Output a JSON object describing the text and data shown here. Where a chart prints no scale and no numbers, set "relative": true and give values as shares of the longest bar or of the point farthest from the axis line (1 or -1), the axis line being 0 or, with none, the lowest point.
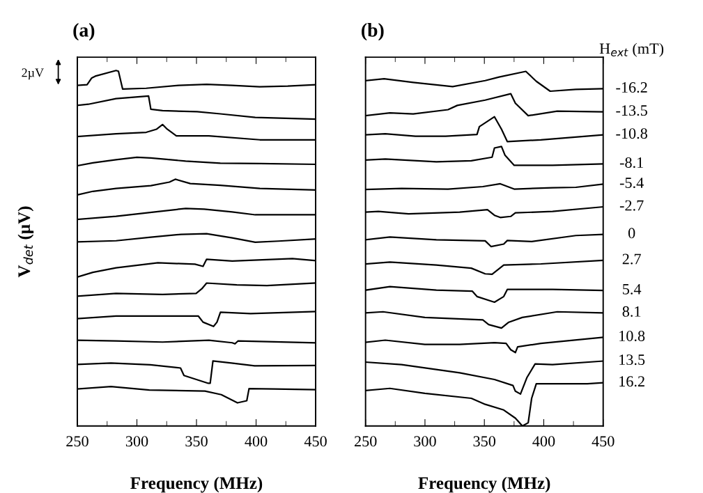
{
  "chart_data": [
    {
      "type": "line",
      "title": "(a)",
      "xlabel": "Frequency (MHz)",
      "ylabel": "V$_{det}$ (µV)",
      "relative": true,
      "xlim": [
        250,
        450
      ],
      "xticks": [
        250,
        {
          "value": 275,
          "label": null
        },
        300,
        {
          "value": 325,
          "label": null
        },
        350,
        {
          "value": 375,
          "label": null
        },
        400,
        {
          "value": 425,
          "label": null
        },
        450
      ],
      "grid": false,
      "marker": "none",
      "line_style": "solid",
      "annotations": [
        "2µV"
      ],
      "series": [
        {
          "color": "#000000",
          "x": [
            250,
            258.2,
            262.1,
            265,
            282.5,
            284.5,
            288,
            307.8,
            335,
            358.5,
            380,
            403,
            426.6,
            450
          ],
          "values": [
            0.958,
            0.96,
            0.979,
            0.984,
            1.0,
            0.998,
            0.948,
            0.95,
            0.958,
            0.961,
            0.958,
            0.954,
            0.956,
            0.96
          ]
        },
        {
          "color": "#000000",
          "x": [
            250,
            259.2,
            282.5,
            309.8,
            311.7,
            321.5,
            350.6,
            370,
            399.3,
            450
          ],
          "values": [
            0.902,
            0.905,
            0.921,
            0.928,
            0.891,
            0.887,
            0.884,
            0.878,
            0.868,
            0.863
          ]
        },
        {
          "color": "#000000",
          "x": [
            250,
            282.5,
            307.8,
            316.6,
            321.5,
            325.4,
            333.1,
            360.4,
            403.2,
            450
          ],
          "values": [
            0.814,
            0.822,
            0.826,
            0.835,
            0.848,
            0.835,
            0.816,
            0.816,
            0.805,
            0.805
          ]
        },
        {
          "color": "#000000",
          "x": [
            250,
            263,
            282.5,
            300,
            311.7,
            340.9,
            370,
            403.2,
            450
          ],
          "values": [
            0.732,
            0.74,
            0.749,
            0.756,
            0.754,
            0.745,
            0.739,
            0.738,
            0.736
          ]
        },
        {
          "color": "#000000",
          "x": [
            250,
            263,
            282.5,
            311.7,
            327.3,
            332.2,
            344.8,
            370,
            403.2,
            450
          ],
          "values": [
            0.65,
            0.66,
            0.668,
            0.676,
            0.686,
            0.694,
            0.682,
            0.677,
            0.668,
            0.664
          ]
        },
        {
          "color": "#000000",
          "x": [
            250,
            282.5,
            317.6,
            341,
            356.5,
            380,
            399.3,
            450
          ],
          "values": [
            0.581,
            0.59,
            0.603,
            0.612,
            0.61,
            0.602,
            0.594,
            0.594
          ]
        },
        {
          "color": "#000000",
          "x": [
            250,
            282.5,
            311.7,
            337,
            358.5,
            380,
            399.3,
            418.8,
            450
          ],
          "values": [
            0.518,
            0.521,
            0.531,
            0.539,
            0.541,
            0.529,
            0.517,
            0.52,
            0.526
          ]
        },
        {
          "color": "#000000",
          "x": [
            250,
            263,
            282.5,
            317.6,
            348.7,
            355.5,
            358.5,
            380,
            430.5,
            450
          ],
          "values": [
            0.419,
            0.432,
            0.445,
            0.459,
            0.455,
            0.449,
            0.469,
            0.464,
            0.471,
            0.465
          ]
        },
        {
          "color": "#000000",
          "x": [
            250,
            282.5,
            321.5,
            349.7,
            354.5,
            358.5,
            383.8,
            409.1,
            450
          ],
          "values": [
            0.365,
            0.373,
            0.37,
            0.373,
            0.386,
            0.402,
            0.397,
            0.395,
            0.402
          ]
        },
        {
          "color": "#000000",
          "x": [
            250,
            282.5,
            351.6,
            355.5,
            364.3,
            367.2,
            370.1,
            395.4,
            450
          ],
          "values": [
            0.302,
            0.309,
            0.309,
            0.292,
            0.28,
            0.292,
            0.32,
            0.316,
            0.322
          ]
        },
        {
          "color": "#000000",
          "x": [
            250,
            282.5,
            321.5,
            360.4,
            380,
            382.3,
            384.8,
            409.1,
            450
          ],
          "values": [
            0.241,
            0.239,
            0.236,
            0.241,
            0.234,
            0.231,
            0.239,
            0.237,
            0.234
          ]
        },
        {
          "color": "#000000",
          "x": [
            250,
            278.2,
            311.3,
            336.6,
            339.5,
            359.9,
            361.5,
            363.8,
            379.4,
            398.8,
            450
          ],
          "values": [
            0.173,
            0.177,
            0.172,
            0.163,
            0.142,
            0.12,
            0.12,
            0.183,
            0.177,
            0.169,
            0.17
          ]
        },
        {
          "color": "#000000",
          "x": [
            250,
            278.2,
            310.4,
            357.1,
            370.8,
            384.4,
            392.2,
            394.1,
            415.5,
            450
          ],
          "values": [
            0.104,
            0.111,
            0.101,
            0.098,
            0.088,
            0.065,
            0.071,
            0.105,
            0.104,
            0.102
          ]
        }
      ]
    },
    {
      "type": "line",
      "title": "(b)",
      "xlabel": "Frequency (MHz)",
      "legend_title": "H$_{ext}$ (mT)",
      "relative": true,
      "xlim": [
        250,
        450
      ],
      "xticks": [
        250,
        {
          "value": 275,
          "label": null
        },
        300,
        {
          "value": 325,
          "label": null
        },
        350,
        {
          "value": 375,
          "label": null
        },
        400,
        {
          "value": 425,
          "label": null
        },
        450
      ],
      "grid": false,
      "legend": "right",
      "marker": "none",
      "line_style": "solid",
      "series": [
        {
          "name": "-16.2",
          "color": "#000000",
          "x": [
            250,
            265.6,
            290.1,
            323.3,
            350.7,
            362.4,
            384.9,
            393.7,
            405.4,
            426.9,
            450
          ],
          "values": [
            0.974,
            0.979,
            0.969,
            0.957,
            0.974,
            0.984,
            1.0,
            0.972,
            0.944,
            0.949,
            0.951
          ]
        },
        {
          "name": "-13.5",
          "color": "#000000",
          "x": [
            250,
            270.5,
            290.1,
            319.4,
            327.2,
            350.7,
            372.2,
            376.1,
            386.9,
            411.3,
            450
          ],
          "values": [
            0.875,
            0.883,
            0.88,
            0.892,
            0.904,
            0.919,
            0.937,
            0.91,
            0.875,
            0.888,
            0.886
          ]
        },
        {
          "name": "-10.8",
          "color": "#000000",
          "x": [
            250,
            266.6,
            292,
            317.4,
            343.8,
            345.8,
            358.5,
            364.4,
            369.3,
            397.6,
            450
          ],
          "values": [
            0.821,
            0.824,
            0.817,
            0.817,
            0.822,
            0.844,
            0.872,
            0.837,
            0.802,
            0.807,
            0.821
          ]
        },
        {
          "name": "-8.1",
          "color": "#000000",
          "x": [
            250,
            266.6,
            309.6,
            339,
            356.5,
            358.5,
            364.4,
            367.3,
            375.1,
            407.4,
            450
          ],
          "values": [
            0.75,
            0.753,
            0.745,
            0.748,
            0.758,
            0.784,
            0.788,
            0.764,
            0.735,
            0.735,
            0.739
          ]
        },
        {
          "name": "-5.4",
          "color": "#000000",
          "x": [
            250,
            280.3,
            319.4,
            348.7,
            363.4,
            375.1,
            407.4,
            427,
            450
          ],
          "values": [
            0.667,
            0.67,
            0.668,
            0.675,
            0.683,
            0.668,
            0.672,
            0.673,
            0.682
          ]
        },
        {
          "name": "-2.7",
          "color": "#000000",
          "x": [
            250,
            260.8,
            286.2,
            329.2,
            352.6,
            358.5,
            363.4,
            372.2,
            376.1,
            407.4,
            450
          ],
          "values": [
            0.603,
            0.605,
            0.598,
            0.603,
            0.61,
            0.594,
            0.588,
            0.591,
            0.601,
            0.605,
            0.618
          ]
        },
        {
          "name": "0",
          "color": "#000000",
          "x": [
            250,
            270.5,
            309.6,
            350.7,
            355.6,
            366.3,
            369.3,
            389.8,
            427,
            450
          ],
          "values": [
            0.525,
            0.533,
            0.525,
            0.522,
            0.506,
            0.513,
            0.523,
            0.52,
            0.537,
            0.54
          ]
        },
        {
          "name": "2.7",
          "color": "#000000",
          "x": [
            250,
            270.5,
            309.6,
            339,
            350.7,
            356.5,
            366.3,
            397.6,
            450
          ],
          "values": [
            0.457,
            0.462,
            0.454,
            0.445,
            0.429,
            0.428,
            0.454,
            0.457,
            0.467
          ]
        },
        {
          "name": "5.4",
          "color": "#000000",
          "x": [
            250,
            270.5,
            309.6,
            339.9,
            343.8,
            358.5,
            366.3,
            369.3,
            407.4,
            450
          ],
          "values": [
            0.383,
            0.393,
            0.383,
            0.38,
            0.365,
            0.349,
            0.365,
            0.385,
            0.385,
            0.382
          ]
        },
        {
          "name": "8.1",
          "color": "#000000",
          "x": [
            250,
            264.7,
            299.9,
            348.7,
            353.6,
            364.4,
            370.2,
            381.9,
            411.3,
            450
          ],
          "values": [
            0.319,
            0.322,
            0.306,
            0.299,
            0.286,
            0.276,
            0.292,
            0.306,
            0.322,
            0.319
          ]
        },
        {
          "name": "10.8",
          "color": "#000000",
          "x": [
            250,
            266.6,
            299.9,
            329.2,
            358.5,
            368.3,
            372.2,
            376.1,
            378,
            397.6,
            450
          ],
          "values": [
            0.236,
            0.242,
            0.23,
            0.23,
            0.235,
            0.233,
            0.215,
            0.207,
            0.223,
            0.233,
            0.25
          ]
        },
        {
          "name": "13.5",
          "color": "#000000",
          "x": [
            250,
            280.3,
            329.2,
            358.5,
            374.1,
            376.1,
            380.4,
            385.9,
            392.7,
            407.4,
            450
          ],
          "values": [
            0.18,
            0.173,
            0.15,
            0.131,
            0.114,
            0.098,
            0.09,
            0.137,
            0.175,
            0.173,
            0.183
          ]
        },
        {
          "name": "16.2",
          "color": "#000000",
          "x": [
            250,
            270.5,
            299.9,
            339,
            350.7,
            366.3,
            376.1,
            382,
            386.9,
            389.8,
            393.7,
            436.7,
            450
          ],
          "values": [
            0.1,
            0.106,
            0.092,
            0.078,
            0.061,
            0.045,
            0.022,
            0.0,
            0.009,
            0.078,
            0.119,
            0.119,
            0.122
          ]
        }
      ]
    }
  ]
}
